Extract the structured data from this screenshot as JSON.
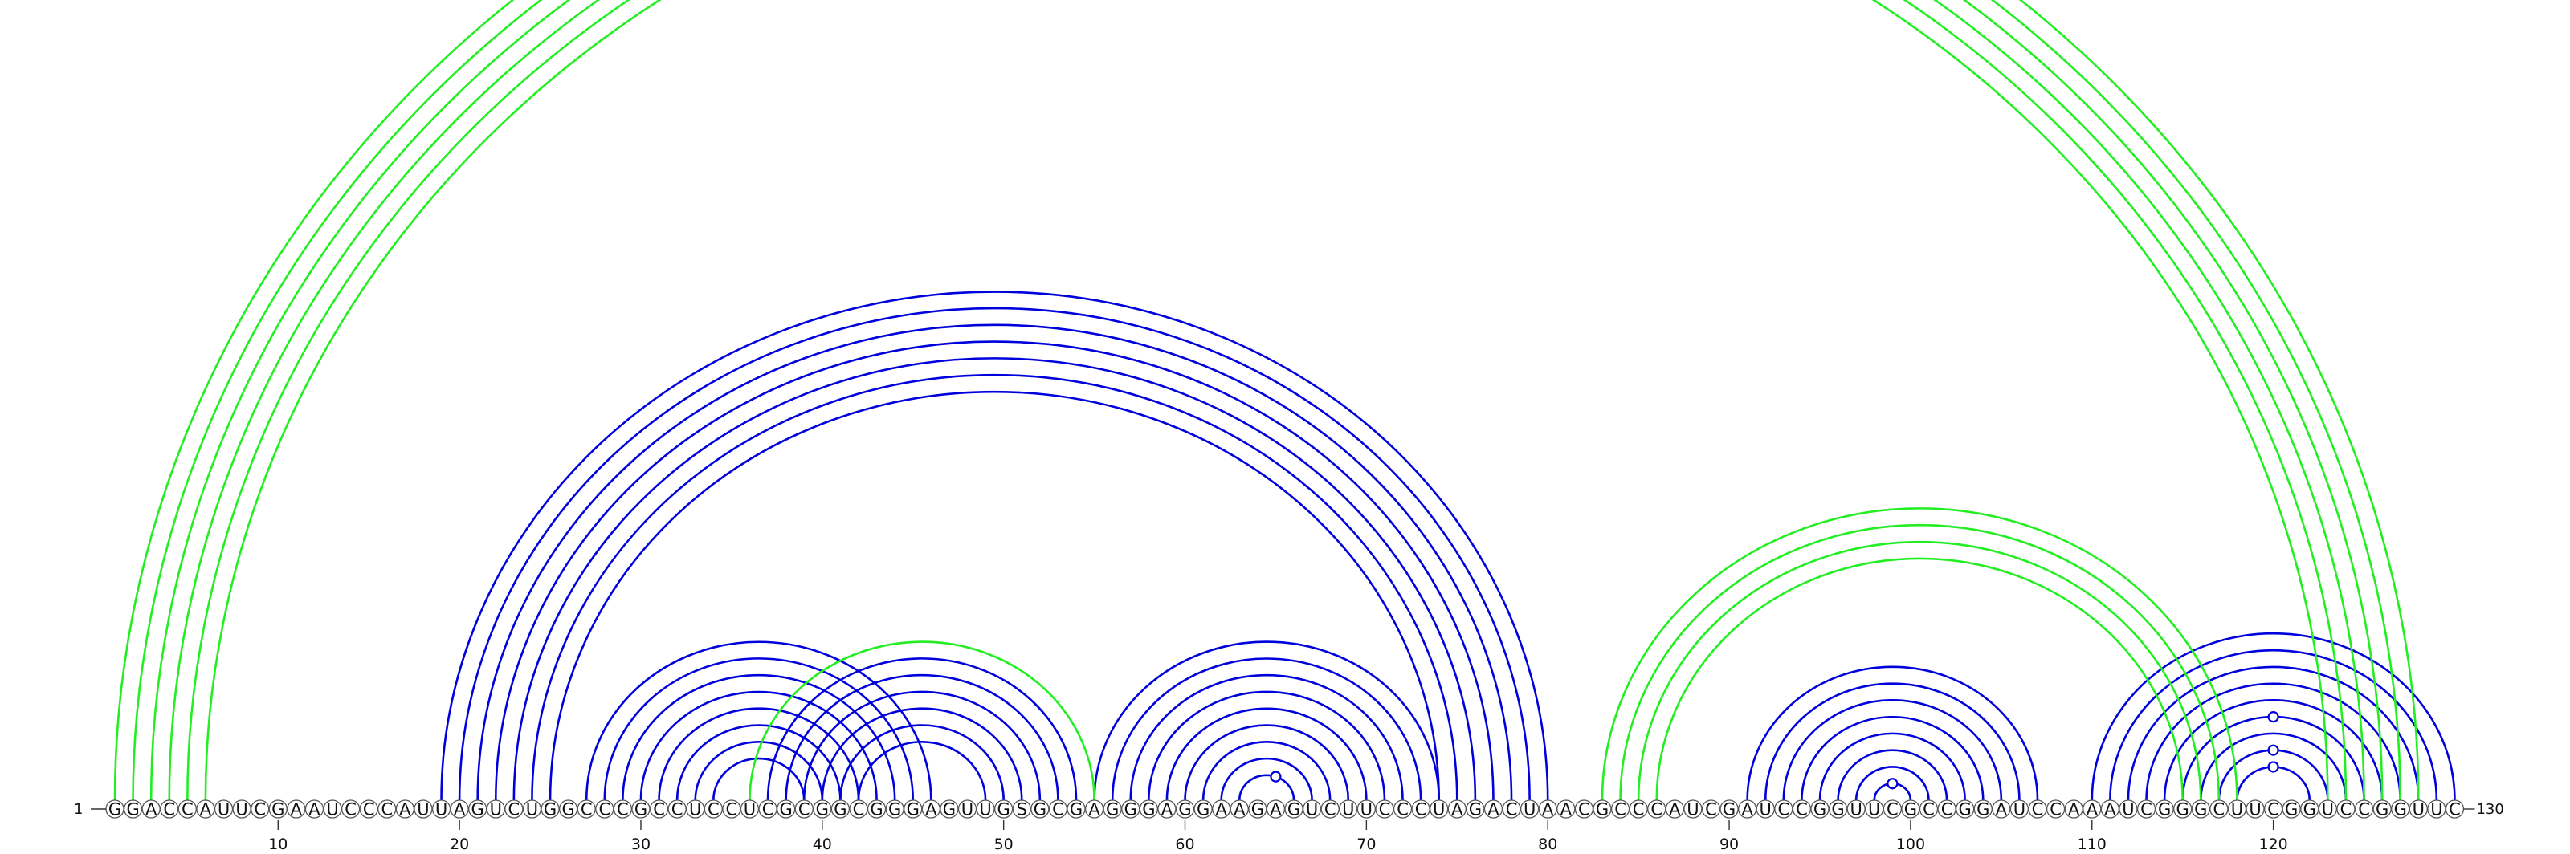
{
  "diagram": {
    "type": "rna-arc-diagram",
    "sequence": "GGACCAUUCGAAUCCCAUUAGUCUGGCCCGCCUCCUCGCGGCGGGAGUUGSGCGAGGGAGGAAGAGUCUUCCCUAGACUAACGCCCAUCGAUCCGGUUCGCCGGAUCCAAAUCGGGCUUCGGUCCGGUUC",
    "start_label": "1",
    "end_label": "130",
    "ticks": [
      10,
      20,
      30,
      40,
      50,
      60,
      70,
      80,
      90,
      100,
      110,
      120
    ],
    "colors": {
      "blue": "#0000dd",
      "green": "#22ee22"
    },
    "blue_pairs": [
      [
        19,
        80
      ],
      [
        20,
        79
      ],
      [
        21,
        78
      ],
      [
        22,
        77
      ],
      [
        23,
        76
      ],
      [
        24,
        75
      ],
      [
        25,
        74
      ],
      [
        27,
        46
      ],
      [
        28,
        45
      ],
      [
        29,
        44
      ],
      [
        30,
        43
      ],
      [
        31,
        42
      ],
      [
        32,
        41
      ],
      [
        33,
        40
      ],
      [
        34,
        39
      ],
      [
        37,
        54
      ],
      [
        38,
        53
      ],
      [
        39,
        52
      ],
      [
        40,
        51
      ],
      [
        41,
        50
      ],
      [
        42,
        49
      ],
      [
        55,
        74
      ],
      [
        56,
        73
      ],
      [
        57,
        72
      ],
      [
        58,
        71
      ],
      [
        59,
        70
      ],
      [
        60,
        69
      ],
      [
        61,
        68
      ],
      [
        62,
        67
      ],
      [
        63,
        66
      ],
      [
        91,
        107
      ],
      [
        92,
        106
      ],
      [
        93,
        105
      ],
      [
        94,
        104
      ],
      [
        95,
        103
      ],
      [
        96,
        102
      ],
      [
        97,
        101
      ],
      [
        98,
        100
      ],
      [
        110,
        130
      ],
      [
        111,
        129
      ],
      [
        112,
        128
      ],
      [
        113,
        127
      ],
      [
        114,
        126
      ],
      [
        115,
        125
      ],
      [
        116,
        124
      ],
      [
        117,
        123
      ],
      [
        118,
        122
      ]
    ],
    "green_pairs": [
      [
        1,
        128
      ],
      [
        2,
        127
      ],
      [
        3,
        126
      ],
      [
        4,
        125
      ],
      [
        5,
        124
      ],
      [
        6,
        123
      ],
      [
        36,
        55
      ],
      [
        83,
        118
      ],
      [
        84,
        117
      ],
      [
        85,
        116
      ],
      [
        86,
        115
      ]
    ],
    "markers": [
      {
        "at": 66,
        "color": "green",
        "on": "outer-arc"
      },
      {
        "at": 65,
        "color": "blue",
        "on": "arc-63-66"
      },
      {
        "at": 99,
        "color": "blue",
        "on": "arc-98-100"
      },
      {
        "at": 120,
        "color": "blue",
        "on": "arc-115-125"
      },
      {
        "at": 120,
        "color": "blue",
        "on": "arc-117-123"
      },
      {
        "at": 120,
        "color": "blue",
        "on": "arc-118-122"
      }
    ]
  }
}
